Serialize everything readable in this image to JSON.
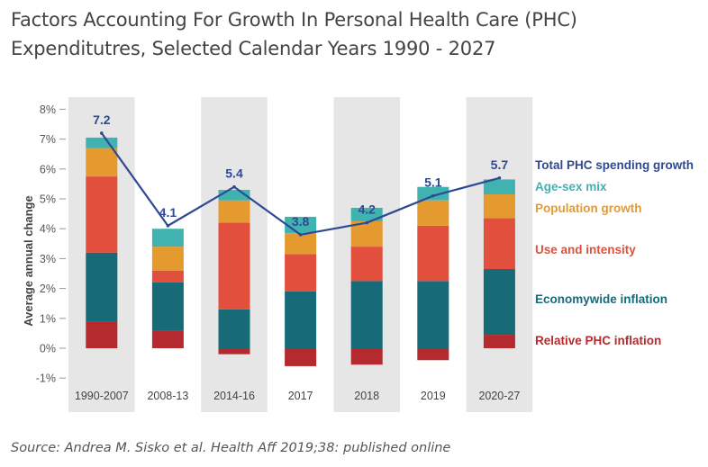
{
  "title": {
    "line1": "Factors Accounting For Growth In Personal Health Care (PHC)",
    "line2": "Expenditutres, Selected Calendar Years 1990 - 2027"
  },
  "source": "Source: Andrea M. Sisko et al. Health Aff 2019;38: published online",
  "chart_data": {
    "type": "bar",
    "stacked": true,
    "ylabel": "Average annual change",
    "ylim": [
      -1,
      8
    ],
    "y_ticks": [
      8,
      7,
      6,
      5,
      4,
      3,
      2,
      1,
      0,
      -1
    ],
    "y_tick_labels": [
      "8%",
      "7%",
      "6%",
      "5%",
      "4%",
      "3%",
      "2%",
      "1%",
      "0%",
      "-1%"
    ],
    "categories": [
      "1990-2007",
      "2008-13",
      "2014-16",
      "2017",
      "2018",
      "2019",
      "2020-27"
    ],
    "shaded_categories": [
      true,
      false,
      true,
      false,
      true,
      false,
      true
    ],
    "series": [
      {
        "name": "Relative PHC inflation",
        "color": "#b52a2e",
        "values": [
          0.9,
          0.6,
          -0.2,
          -0.6,
          -0.55,
          -0.4,
          0.45
        ]
      },
      {
        "name": "Economywide inflation",
        "color": "#176a78",
        "values": [
          2.3,
          1.6,
          1.3,
          1.9,
          2.25,
          2.25,
          2.2
        ]
      },
      {
        "name": "Use and intensity",
        "color": "#e24f3c",
        "values": [
          2.55,
          0.4,
          2.9,
          1.25,
          1.15,
          1.85,
          1.7
        ]
      },
      {
        "name": "Population growth",
        "color": "#e59a2f",
        "values": [
          0.95,
          0.8,
          0.75,
          0.7,
          0.85,
          0.85,
          0.8
        ]
      },
      {
        "name": "Age-sex mix",
        "color": "#40b3b0",
        "values": [
          0.35,
          0.6,
          0.35,
          0.55,
          0.45,
          0.45,
          0.5
        ]
      }
    ],
    "total_series": {
      "name": "Total PHC spending growth",
      "color": "#2e4a93",
      "values": [
        7.2,
        4.1,
        5.4,
        3.8,
        4.2,
        5.1,
        5.7
      ],
      "labels": [
        "7.2",
        "4.1",
        "5.4",
        "3.8",
        "4.2",
        "5.1",
        "5.7"
      ]
    },
    "legend": [
      {
        "label": "Total PHC spending growth",
        "color": "#2e4a93"
      },
      {
        "label": "Age-sex mix",
        "color": "#40b3b0"
      },
      {
        "label": "Population growth",
        "color": "#e59a2f"
      },
      {
        "label": "Use and intensity",
        "color": "#e24f3c"
      },
      {
        "label": "Economywide inflation",
        "color": "#176a78"
      },
      {
        "label": "Relative PHC inflation",
        "color": "#b52a2e"
      }
    ],
    "legend_position": "right"
  }
}
